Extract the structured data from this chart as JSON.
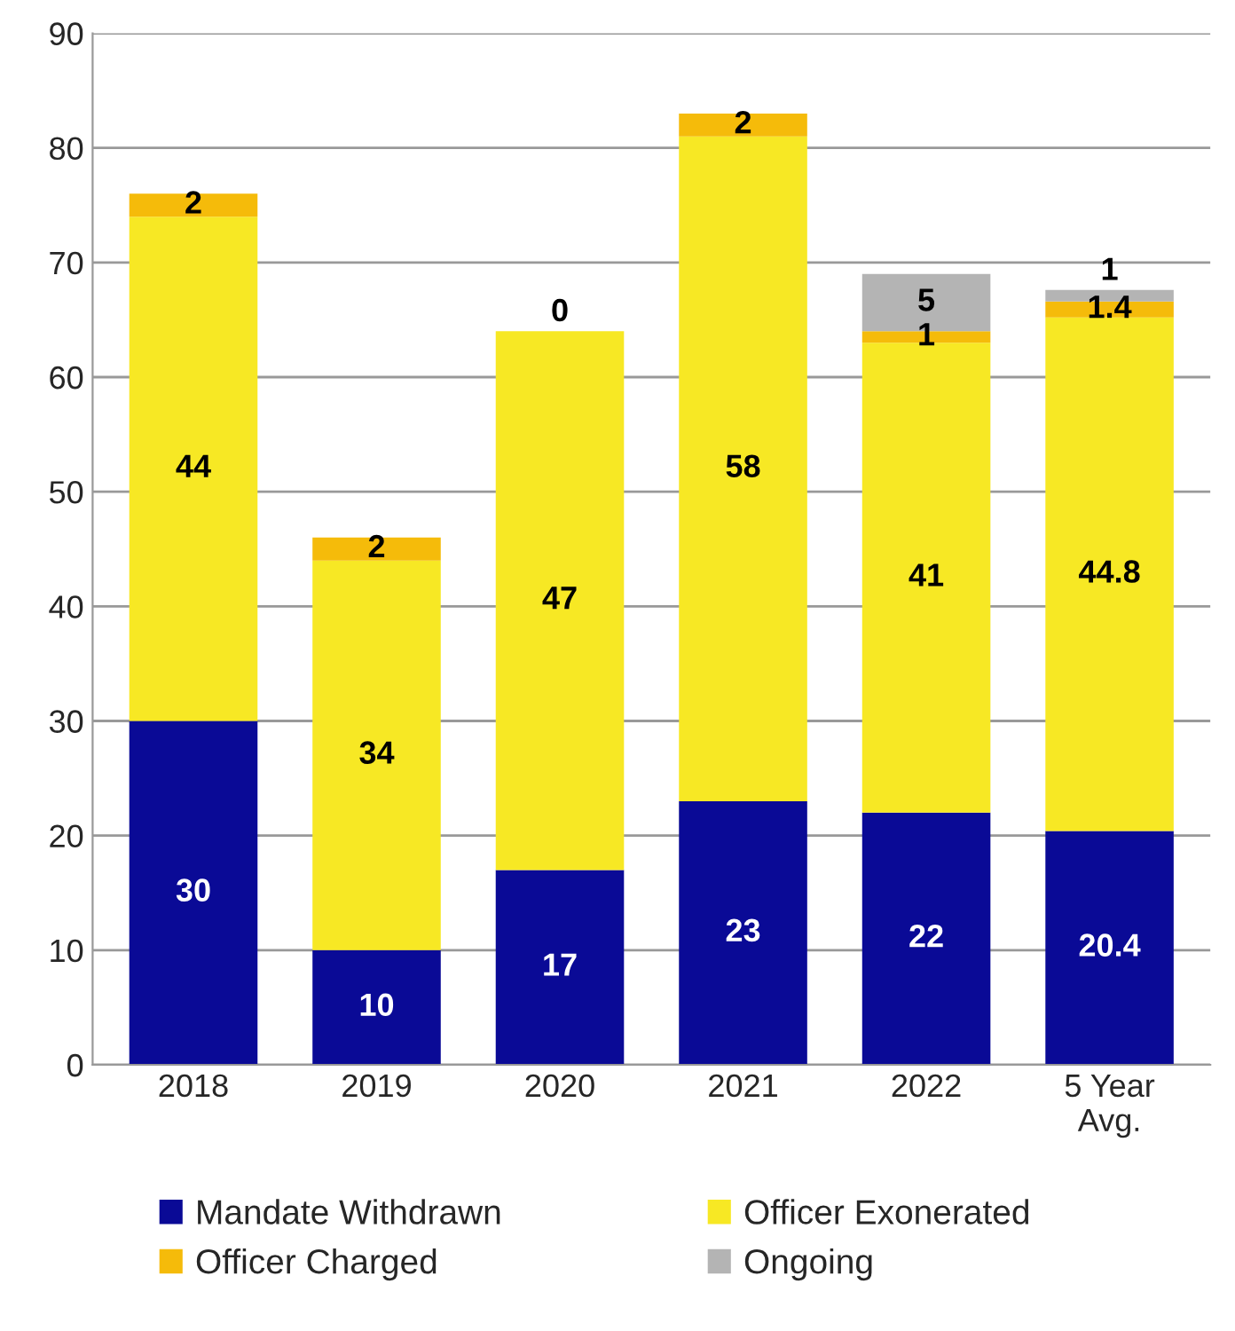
{
  "chart_data": {
    "type": "bar",
    "stacked": true,
    "categories": [
      "2018",
      "2019",
      "2020",
      "2021",
      "2022",
      "5 Year\nAvg."
    ],
    "series": [
      {
        "name": "Mandate Withdrawn",
        "color": "#0a0a96",
        "values": [
          30,
          10,
          17,
          23,
          22,
          20.4
        ]
      },
      {
        "name": "Officer Exonerated",
        "color": "#f7e824",
        "values": [
          44,
          34,
          47,
          58,
          41,
          44.8
        ]
      },
      {
        "name": "Officer Charged",
        "color": "#f5bb0a",
        "values": [
          2,
          2,
          0,
          2,
          1,
          1.4
        ]
      },
      {
        "name": "Ongoing",
        "color": "#b4b4b4",
        "values": [
          null,
          null,
          null,
          null,
          5,
          1
        ]
      }
    ],
    "ylim": [
      0,
      90
    ],
    "yticks": [
      0,
      10,
      20,
      30,
      40,
      50,
      60,
      70,
      80,
      90
    ],
    "grid": "y",
    "legend": "bottom",
    "data_labels": true
  }
}
